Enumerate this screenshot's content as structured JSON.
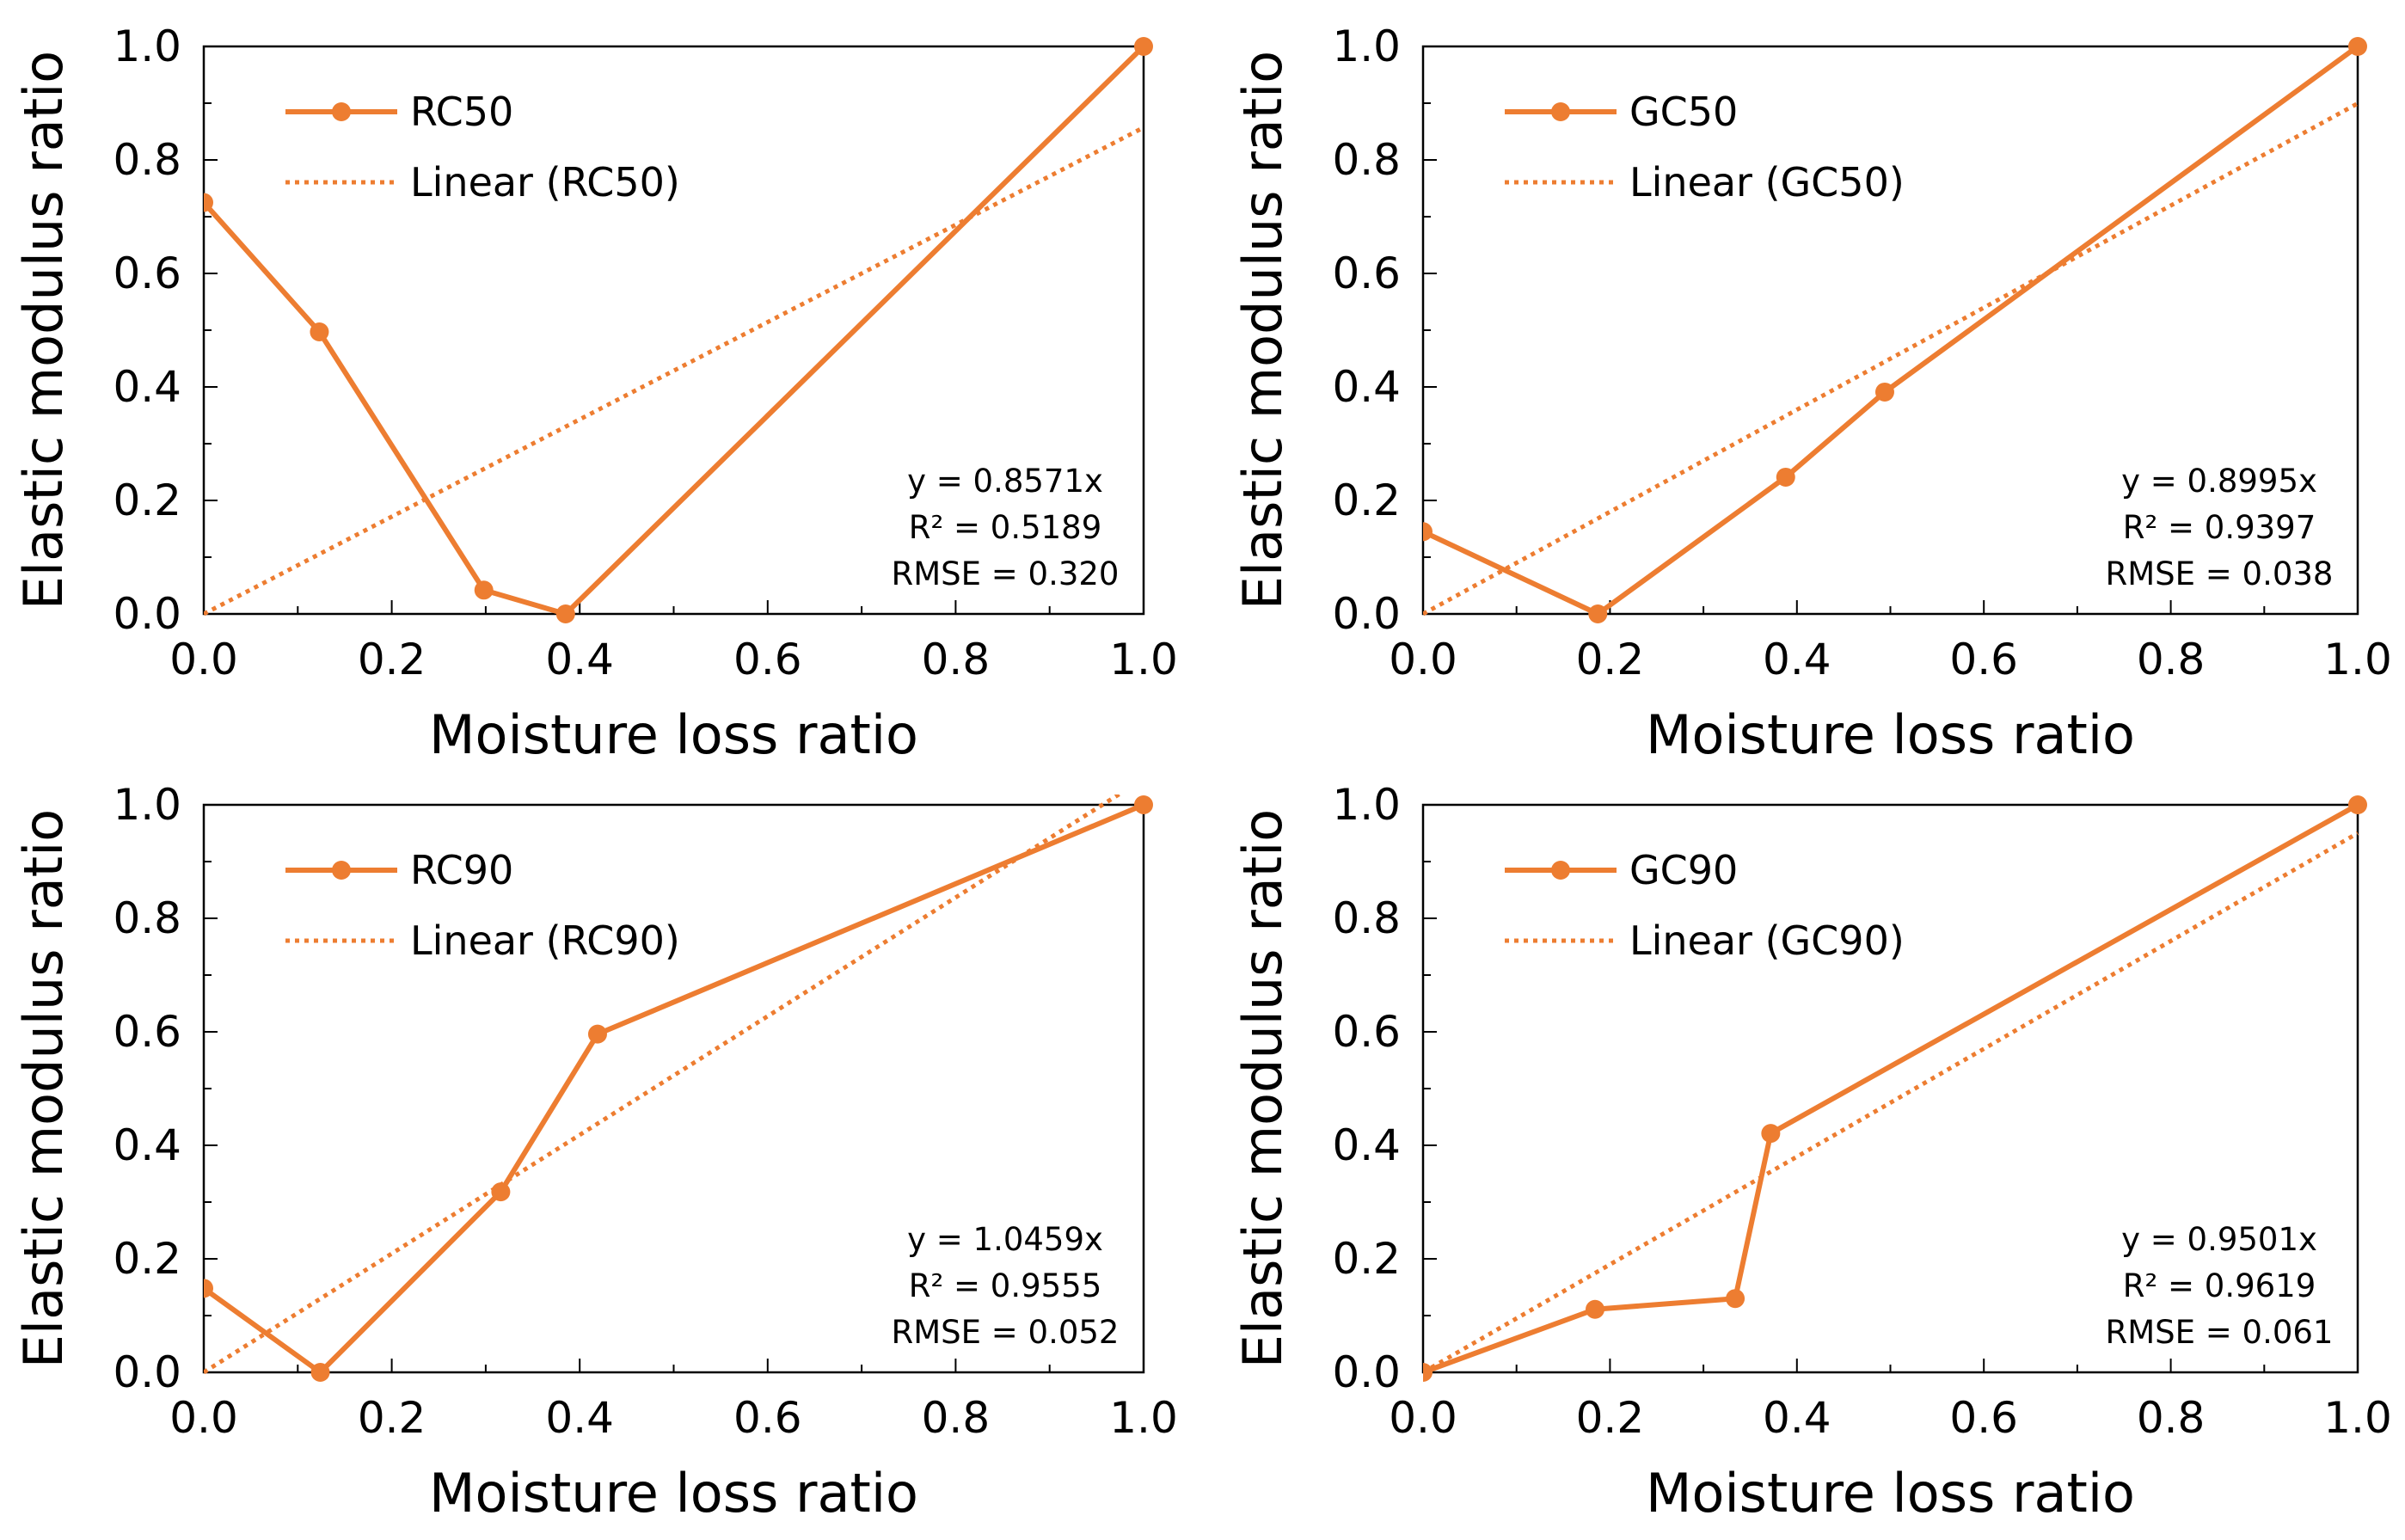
{
  "figure": {
    "accent_color": "#ED7D31",
    "axis_color": "#000000"
  },
  "chart_data": [
    {
      "type": "line",
      "xlabel": "Moisture loss ratio",
      "ylabel": "Elastic modulus ratio",
      "xlim": [
        0,
        1.0
      ],
      "ylim": [
        0,
        1.0
      ],
      "xticks": [
        "0.0",
        "0.2",
        "0.4",
        "0.6",
        "0.8",
        "1.0"
      ],
      "yticks": [
        "0.0",
        "0.2",
        "0.4",
        "0.6",
        "0.8",
        "1.0"
      ],
      "grid": false,
      "legend_position": "top-left",
      "series": [
        {
          "name": "RC50",
          "x": [
            0.0,
            0.123,
            0.298,
            0.385,
            1.0
          ],
          "y": [
            0.725,
            0.497,
            0.042,
            0.0,
            1.0
          ]
        }
      ],
      "trendline": {
        "name": "Linear (RC50)",
        "slope": 0.8571,
        "style": "dotted"
      },
      "annotation": [
        "y = 0.8571x",
        "R² = 0.5189",
        "RMSE = 0.320"
      ]
    },
    {
      "type": "line",
      "xlabel": "Moisture loss ratio",
      "ylabel": "Elastic modulus ratio",
      "xlim": [
        0,
        1.0
      ],
      "ylim": [
        0,
        1.0
      ],
      "xticks": [
        "0.0",
        "0.2",
        "0.4",
        "0.6",
        "0.8",
        "1.0"
      ],
      "yticks": [
        "0.0",
        "0.2",
        "0.4",
        "0.6",
        "0.8",
        "1.0"
      ],
      "grid": false,
      "legend_position": "top-left",
      "series": [
        {
          "name": "GC50",
          "x": [
            0.0,
            0.187,
            0.388,
            0.494,
            1.0
          ],
          "y": [
            0.145,
            0.0,
            0.241,
            0.391,
            1.0
          ]
        }
      ],
      "trendline": {
        "name": "Linear (GC50)",
        "slope": 0.8995,
        "style": "dotted"
      },
      "annotation": [
        "y = 0.8995x",
        "R² = 0.9397",
        "RMSE = 0.038"
      ]
    },
    {
      "type": "line",
      "xlabel": "Moisture loss ratio",
      "ylabel": "Elastic modulus ratio",
      "xlim": [
        0,
        1.0
      ],
      "ylim": [
        0,
        1.0
      ],
      "xticks": [
        "0.0",
        "0.2",
        "0.4",
        "0.6",
        "0.8",
        "1.0"
      ],
      "yticks": [
        "0.0",
        "0.2",
        "0.4",
        "0.6",
        "0.8",
        "1.0"
      ],
      "grid": false,
      "legend_position": "top-left",
      "series": [
        {
          "name": "RC90",
          "x": [
            0.0,
            0.124,
            0.316,
            0.419,
            1.0
          ],
          "y": [
            0.148,
            0.0,
            0.318,
            0.596,
            1.0
          ]
        }
      ],
      "trendline": {
        "name": "Linear (RC90)",
        "slope": 1.0459,
        "style": "dotted"
      },
      "annotation": [
        "y = 1.0459x",
        "R² = 0.9555",
        "RMSE = 0.052"
      ]
    },
    {
      "type": "line",
      "xlabel": "Moisture loss ratio",
      "ylabel": "Elastic modulus ratio",
      "xlim": [
        0,
        1.0
      ],
      "ylim": [
        0,
        1.0
      ],
      "xticks": [
        "0.0",
        "0.2",
        "0.4",
        "0.6",
        "0.8",
        "1.0"
      ],
      "yticks": [
        "0.0",
        "0.2",
        "0.4",
        "0.6",
        "0.8",
        "1.0"
      ],
      "grid": false,
      "legend_position": "top-left",
      "series": [
        {
          "name": "GC90",
          "x": [
            0.0,
            0.184,
            0.334,
            0.372,
            1.0
          ],
          "y": [
            0.0,
            0.111,
            0.13,
            0.421,
            1.0
          ]
        }
      ],
      "trendline": {
        "name": "Linear (GC90)",
        "slope": 0.9501,
        "style": "dotted"
      },
      "annotation": [
        "y = 0.9501x",
        "R² = 0.9619",
        "RMSE = 0.061"
      ]
    }
  ]
}
